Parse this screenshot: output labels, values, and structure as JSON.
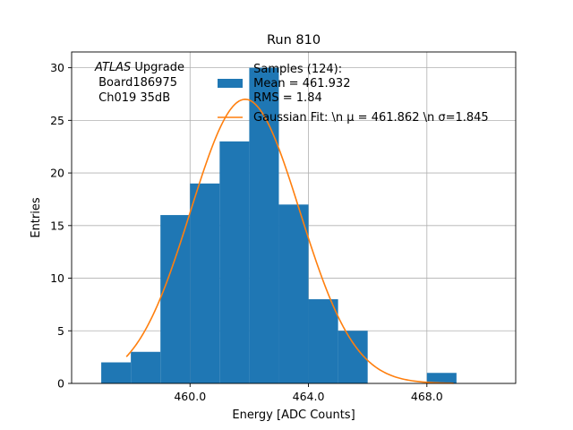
{
  "chart_data": {
    "type": "histogram",
    "title": "Run 810",
    "xlabel": "Energy [ADC Counts]",
    "ylabel": "Entries",
    "xlim": [
      456.0,
      471.0
    ],
    "ylim": [
      0,
      31.5
    ],
    "xticks": [
      460.0,
      464.0,
      468.0
    ],
    "xtick_labels": [
      "460.0",
      "464.0",
      "468.0"
    ],
    "yticks": [
      0,
      5,
      10,
      15,
      20,
      25,
      30
    ],
    "ytick_labels": [
      "0",
      "5",
      "10",
      "15",
      "20",
      "25",
      "30"
    ],
    "grid": true,
    "bar_color": "#1f77b4",
    "fit_color": "#ff7f0e",
    "bins": [
      {
        "left": 457.0,
        "right": 458.0,
        "count": 2
      },
      {
        "left": 458.0,
        "right": 459.0,
        "count": 3
      },
      {
        "left": 459.0,
        "right": 460.0,
        "count": 16
      },
      {
        "left": 460.0,
        "right": 461.0,
        "count": 19
      },
      {
        "left": 461.0,
        "right": 462.0,
        "count": 23
      },
      {
        "left": 462.0,
        "right": 463.0,
        "count": 30
      },
      {
        "left": 463.0,
        "right": 464.0,
        "count": 17
      },
      {
        "left": 464.0,
        "right": 465.0,
        "count": 8
      },
      {
        "left": 465.0,
        "right": 466.0,
        "count": 5
      },
      {
        "left": 466.0,
        "right": 467.0,
        "count": 0
      },
      {
        "left": 467.0,
        "right": 468.0,
        "count": 0
      },
      {
        "left": 468.0,
        "right": 469.0,
        "count": 1
      }
    ],
    "fit": {
      "mu": 461.862,
      "sigma": 1.845,
      "amplitude": 27.0,
      "x_range": [
        457.85,
        468.9
      ]
    },
    "legend_position": "upper right",
    "legend": {
      "samples_label": [
        " Samples (124):",
        " Mean = 461.932",
        " RMS = 1.84"
      ],
      "fit_label": "Gaussian Fit: \\n μ = 461.862 \\n σ=1.845"
    },
    "annotation": {
      "atlas": "ATLAS",
      "upgrade": " Upgrade",
      "board": " Board186975",
      "channel": " Ch019 35dB"
    }
  }
}
